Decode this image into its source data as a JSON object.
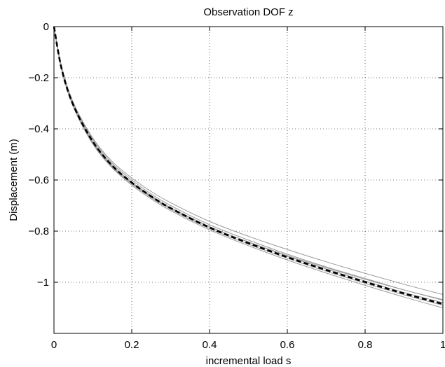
{
  "chart_data": {
    "type": "line",
    "title": "Observation DOF z",
    "xlabel": "incremental load s",
    "ylabel": "Displacement (m)",
    "xlim": [
      0,
      1
    ],
    "ylim": [
      -1.2,
      0
    ],
    "grid": true,
    "x_ticks": [
      0,
      0.2,
      0.4,
      0.6,
      0.8,
      1
    ],
    "x_tick_labels": [
      "0",
      "0.2",
      "0.4",
      "0.6",
      "0.8",
      "1"
    ],
    "y_ticks": [
      0,
      -0.2,
      -0.4,
      -0.6,
      -0.8,
      -1
    ],
    "y_tick_labels": [
      "0",
      "−0.2",
      "−0.4",
      "−0.6",
      "−0.8",
      "−1"
    ],
    "x": [
      0,
      0.02,
      0.05,
      0.1,
      0.15,
      0.2,
      0.25,
      0.3,
      0.4,
      0.5,
      0.6,
      0.7,
      0.8,
      0.9,
      1.0
    ],
    "series": [
      {
        "style": "gray-solid",
        "color": "#9a9a9a",
        "values": [
          0,
          -0.16,
          -0.3,
          -0.44,
          -0.535,
          -0.6,
          -0.655,
          -0.7,
          -0.775,
          -0.835,
          -0.89,
          -0.94,
          -0.985,
          -1.03,
          -1.07
        ]
      },
      {
        "style": "gray-solid",
        "color": "#9a9a9a",
        "values": [
          0,
          -0.165,
          -0.305,
          -0.448,
          -0.542,
          -0.608,
          -0.662,
          -0.708,
          -0.782,
          -0.843,
          -0.898,
          -0.948,
          -0.995,
          -1.04,
          -1.08
        ]
      },
      {
        "style": "gray-solid",
        "color": "#9a9a9a",
        "values": [
          0,
          -0.172,
          -0.315,
          -0.46,
          -0.553,
          -0.62,
          -0.674,
          -0.72,
          -0.795,
          -0.857,
          -0.913,
          -0.964,
          -1.012,
          -1.058,
          -1.1
        ]
      },
      {
        "style": "gray-solid",
        "color": "#9a9a9a",
        "values": [
          0,
          -0.168,
          -0.31,
          -0.452,
          -0.546,
          -0.612,
          -0.665,
          -0.71,
          -0.783,
          -0.842,
          -0.895,
          -0.943,
          -0.988,
          -1.03,
          -1.068
        ]
      },
      {
        "style": "gray-solid",
        "color": "#9a9a9a",
        "values": [
          0,
          -0.158,
          -0.297,
          -0.436,
          -0.528,
          -0.592,
          -0.645,
          -0.689,
          -0.762,
          -0.82,
          -0.872,
          -0.92,
          -0.965,
          -1.008,
          -1.048
        ]
      },
      {
        "style": "gray-solid",
        "color": "#9a9a9a",
        "values": [
          0,
          -0.17,
          -0.312,
          -0.455,
          -0.549,
          -0.615,
          -0.669,
          -0.715,
          -0.79,
          -0.851,
          -0.906,
          -0.957,
          -1.004,
          -1.049,
          -1.09
        ]
      },
      {
        "style": "black-dashed",
        "color": "#000000",
        "values": [
          0,
          -0.167,
          -0.308,
          -0.45,
          -0.544,
          -0.61,
          -0.664,
          -0.71,
          -0.786,
          -0.847,
          -0.902,
          -0.952,
          -0.999,
          -1.044,
          -1.085
        ]
      }
    ]
  }
}
